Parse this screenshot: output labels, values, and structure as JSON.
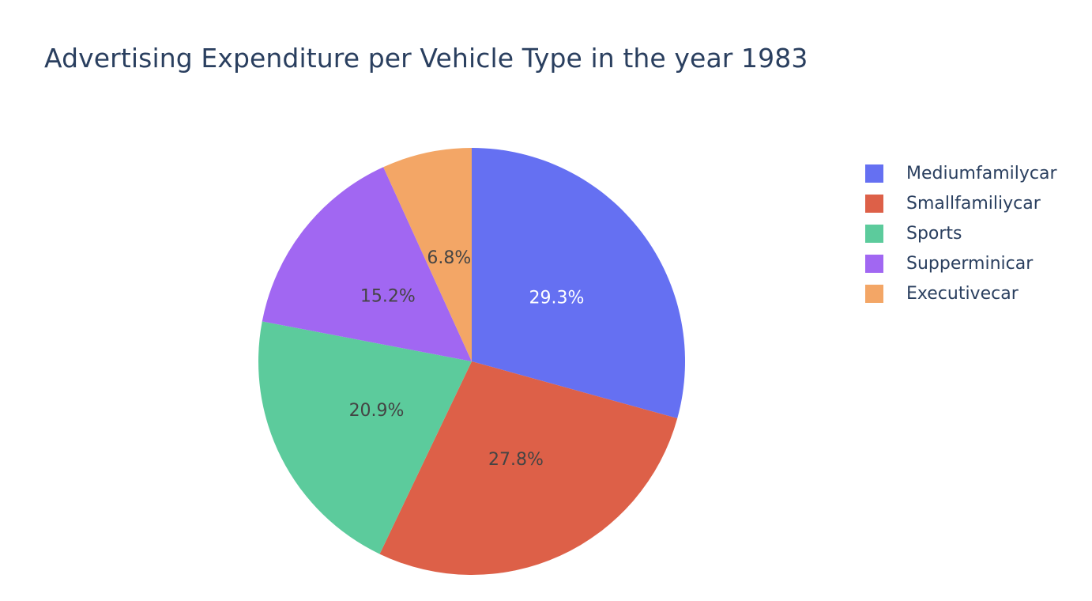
{
  "chart_data": {
    "type": "pie",
    "title": "Advertising Expenditure per Vehicle Type in the year 1983",
    "categories": [
      "Mediumfamilycar",
      "Smallfamiliycar",
      "Sports",
      "Supperminicar",
      "Executivecar"
    ],
    "values": [
      29.3,
      27.8,
      20.9,
      15.2,
      6.8
    ],
    "labels": [
      "29.3%",
      "27.8%",
      "20.9%",
      "15.2%",
      "6.8%"
    ],
    "colors": [
      "#636efa",
      "#ef553b",
      "#00cc96",
      "#ab63fa",
      "#ffa15a"
    ],
    "slice_colors": [
      "#6570f2",
      "#dd6048",
      "#5ccb9c",
      "#a167f2",
      "#f3a666"
    ],
    "label_colors": [
      "#ffffff",
      "#444444",
      "#444444",
      "#444444",
      "#444444"
    ],
    "direction": "clockwise",
    "start_angle": "top",
    "legend_position": "top-right"
  }
}
